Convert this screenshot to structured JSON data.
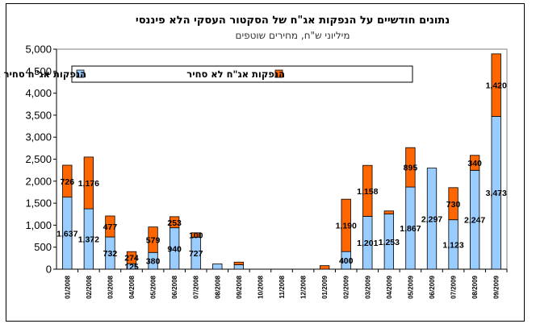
{
  "chart_data": {
    "type": "bar",
    "stacked": true,
    "title": "נתונים חודשיים על הנפקות אג\"ח של הסקטור העסקי הלא פיננסי",
    "subtitle": "מיליוני ש\"ח, מחירים שוטפים",
    "categories": [
      "01/2008",
      "02/2008",
      "03/2008",
      "04/2008",
      "05/2008",
      "06/2008",
      "07/2008",
      "08/2008",
      "09/2008",
      "10/2008",
      "11/2008",
      "12/2008",
      "01/2009",
      "02/2009",
      "03/2009",
      "04/2009",
      "05/2009",
      "06/2009",
      "07/2009",
      "08/2009",
      "09/2009"
    ],
    "series": [
      {
        "name": "הנפקות אג\"ח סחיר בבורסה בת\"א",
        "color": "#99ccff",
        "values": [
          1637,
          1372,
          732,
          125,
          380,
          940,
          727,
          120,
          100,
          0,
          0,
          0,
          0,
          400,
          1201,
          1253,
          1867,
          2297,
          1123,
          2247,
          3473
        ],
        "labels": [
          "1,637",
          "1,372",
          "732",
          "125",
          "380",
          "940",
          "727",
          "",
          "",
          "",
          "",
          "",
          "",
          "400",
          "1,201",
          "1,253",
          "1,867",
          "2,297",
          "1,123",
          "2,247",
          "3,473"
        ]
      },
      {
        "name": "הנפקות אג\"ח לא סחיר",
        "color": "#ff6600",
        "values": [
          726,
          1176,
          477,
          274,
          579,
          253,
          100,
          0,
          60,
          0,
          0,
          0,
          80,
          1190,
          1158,
          70,
          895,
          0,
          730,
          340,
          1420
        ],
        "labels": [
          "726",
          "1,176",
          "477",
          "274",
          "579",
          "253",
          "100",
          "",
          "",
          "",
          "",
          "",
          "",
          "1,190",
          "1,158",
          "",
          "895",
          "",
          "730",
          "340",
          "1,420"
        ]
      }
    ],
    "ylim": [
      0,
      5000
    ],
    "yticks": [
      "0",
      "500",
      "1,000",
      "1,500",
      "2,000",
      "2,500",
      "3,000",
      "3,500",
      "4,000",
      "4,500",
      "5,000"
    ],
    "grid": false,
    "legend": "top-left"
  }
}
